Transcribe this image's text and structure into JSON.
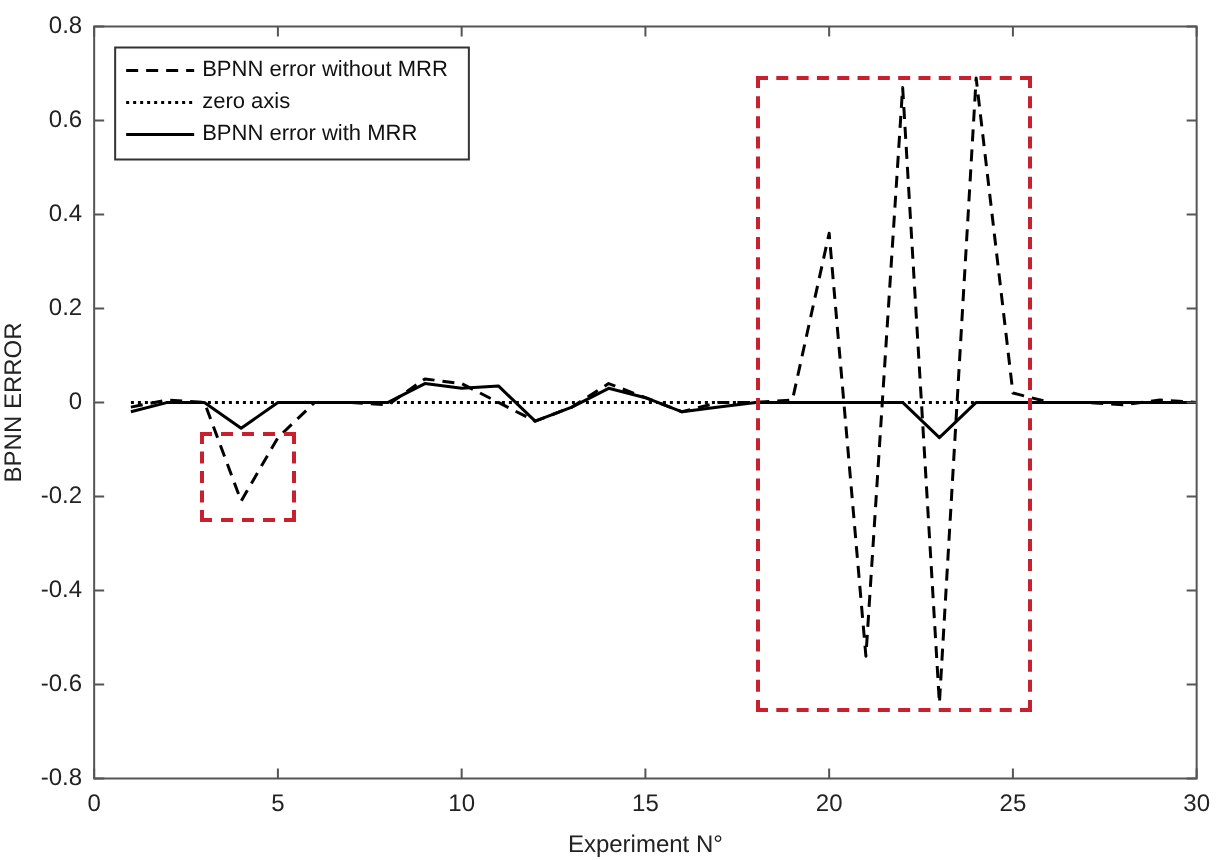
{
  "chart_data": {
    "type": "line",
    "xlabel": "Experiment N°",
    "ylabel": "BPNN ERROR",
    "x": [
      1,
      2,
      3,
      4,
      5,
      6,
      7,
      8,
      9,
      10,
      11,
      12,
      13,
      14,
      15,
      16,
      17,
      18,
      19,
      20,
      21,
      22,
      23,
      24,
      25,
      26,
      27,
      28,
      29,
      30
    ],
    "series": [
      {
        "name": "BPNN error without MRR",
        "color": "#000000",
        "line_style": "dashed",
        "values": [
          -0.01,
          0.005,
          0,
          -0.21,
          -0.075,
          0,
          0,
          -0.005,
          0.05,
          0.04,
          0,
          -0.04,
          -0.01,
          0.04,
          0.01,
          -0.02,
          0,
          0,
          0.005,
          0.36,
          -0.54,
          0.67,
          -0.64,
          0.69,
          0.02,
          0,
          0,
          -0.005,
          0.005,
          0
        ]
      },
      {
        "name": "zero axis",
        "color": "#000000",
        "line_style": "dotted",
        "values": [
          0,
          0,
          0,
          0,
          0,
          0,
          0,
          0,
          0,
          0,
          0,
          0,
          0,
          0,
          0,
          0,
          0,
          0,
          0,
          0,
          0,
          0,
          0,
          0,
          0,
          0,
          0,
          0,
          0,
          0
        ]
      },
      {
        "name": "BPNN error with MRR",
        "color": "#000000",
        "line_style": "solid",
        "values": [
          -0.02,
          0,
          0,
          -0.055,
          0,
          0,
          0,
          0,
          0.04,
          0.03,
          0.035,
          -0.04,
          -0.01,
          0.03,
          0.01,
          -0.02,
          -0.01,
          0,
          0,
          0,
          0,
          0,
          -0.075,
          0,
          0,
          0,
          0,
          0,
          0,
          0
        ]
      }
    ],
    "xlim": [
      0,
      30
    ],
    "xticks": [
      0,
      5,
      10,
      15,
      20,
      25,
      30
    ],
    "ylim": [
      -0.8,
      0.8
    ],
    "yticks": [
      -0.8,
      -0.6,
      -0.4,
      -0.2,
      0,
      0.2,
      0.4,
      0.6,
      0.8
    ],
    "grid": false,
    "legend": "top left",
    "marker": "none"
  }
}
